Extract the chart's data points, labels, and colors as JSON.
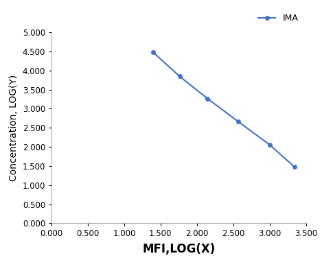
{
  "x": [
    1.398,
    1.763,
    2.146,
    2.568,
    3.0,
    3.342
  ],
  "y": [
    4.477,
    3.845,
    3.265,
    2.663,
    2.057,
    1.477
  ],
  "line_color": "#4472C4",
  "marker": "o",
  "marker_size": 4,
  "legend_label": "IMA",
  "xlabel": "MFI,LOG(X)",
  "ylabel": "Concentration, LOG(Y)",
  "xlim": [
    0.0,
    3.5
  ],
  "ylim": [
    0.0,
    5.0
  ],
  "xticks": [
    0.0,
    0.5,
    1.0,
    1.5,
    2.0,
    2.5,
    3.0,
    3.5
  ],
  "yticks": [
    0.0,
    0.5,
    1.0,
    1.5,
    2.0,
    2.5,
    3.0,
    3.5,
    4.0,
    4.5,
    5.0
  ],
  "xlabel_fontsize": 12,
  "ylabel_fontsize": 10,
  "xlabel_fontweight": "bold",
  "ylabel_fontweight": "normal",
  "tick_label_fontsize": 8.5,
  "legend_fontsize": 9,
  "background_color": "#ffffff"
}
